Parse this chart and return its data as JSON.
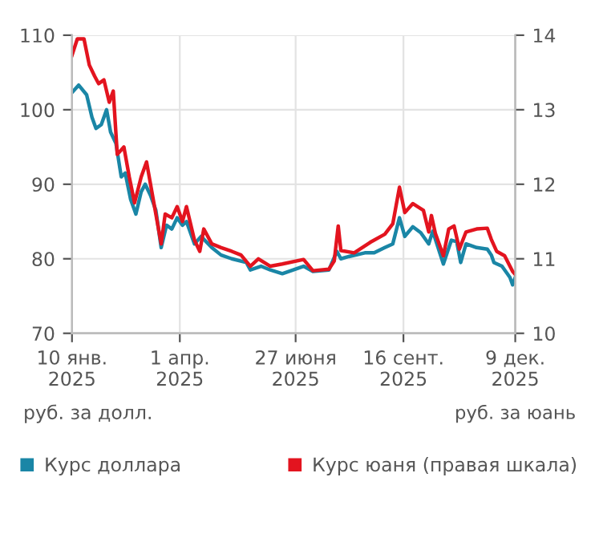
{
  "chart_data": {
    "type": "line",
    "ylabel": "руб. за долл.",
    "y2label": "руб. за юань",
    "xlim": [
      "2025-01-10",
      "2025-12-09"
    ],
    "xticks": [
      {
        "value": "2025-01-10",
        "label": "10 янв.\n2025"
      },
      {
        "value": "2025-04-01",
        "label": "1 апр.\n2025"
      },
      {
        "value": "2025-06-27",
        "label": "27 июня\n2025"
      },
      {
        "value": "2025-09-16",
        "label": "16 сент.\n2025"
      },
      {
        "value": "2025-12-09",
        "label": "9 дек.\n2025"
      }
    ],
    "ylim": [
      70,
      110
    ],
    "yticks": [
      70,
      80,
      90,
      100,
      110
    ],
    "y2lim": [
      10,
      14
    ],
    "y2ticks": [
      10,
      11,
      12,
      13,
      14
    ],
    "grid": true,
    "legend": "bottom",
    "marker": "none",
    "line_style": "solid",
    "series": [
      {
        "name": "Курс доллара",
        "color": "#1a86a6",
        "x": [
          "2025-01-10",
          "2025-01-15",
          "2025-01-21",
          "2025-01-25",
          "2025-01-28",
          "2025-02-01",
          "2025-02-05",
          "2025-02-08",
          "2025-02-12",
          "2025-02-16",
          "2025-02-19",
          "2025-02-23",
          "2025-02-27",
          "2025-03-03",
          "2025-03-06",
          "2025-03-10",
          "2025-03-14",
          "2025-03-18",
          "2025-03-22",
          "2025-03-26",
          "2025-03-30",
          "2025-04-03",
          "2025-04-06",
          "2025-04-12",
          "2025-04-17",
          "2025-04-25",
          "2025-05-02",
          "2025-05-10",
          "2025-05-21",
          "2025-05-24",
          "2025-06-01",
          "2025-06-08",
          "2025-06-17",
          "2025-07-03",
          "2025-07-10",
          "2025-07-22",
          "2025-07-28",
          "2025-07-31",
          "2025-08-06",
          "2025-08-18",
          "2025-08-25",
          "2025-09-02",
          "2025-09-08",
          "2025-09-13",
          "2025-09-17",
          "2025-09-23",
          "2025-09-29",
          "2025-10-05",
          "2025-10-08",
          "2025-10-16",
          "2025-10-22",
          "2025-10-26",
          "2025-10-29",
          "2025-11-02",
          "2025-11-10",
          "2025-11-18",
          "2025-11-21",
          "2025-11-23",
          "2025-11-29",
          "2025-12-05",
          "2025-12-07",
          "2025-12-09"
        ],
        "values": [
          102.3,
          103.3,
          102,
          99,
          97.5,
          98,
          100,
          97,
          95.5,
          91,
          91.5,
          88,
          86,
          89,
          90,
          88.5,
          86.5,
          81.5,
          84.5,
          84,
          85.5,
          84.5,
          85,
          82,
          83,
          81.5,
          80.5,
          80,
          79.5,
          78.5,
          79,
          78.5,
          78,
          79,
          78.3,
          78.5,
          81,
          80,
          80.3,
          80.8,
          80.8,
          81.5,
          82,
          85.5,
          83,
          84.3,
          83.5,
          82,
          83.7,
          79.3,
          82.5,
          82.3,
          79.5,
          82,
          81.5,
          81.3,
          80.5,
          79.5,
          79,
          77.5,
          76.5,
          77.5
        ]
      },
      {
        "name": "Курс юаня (правая шкала)",
        "color": "#e3141f",
        "axis": "y2",
        "x": [
          "2025-01-10",
          "2025-01-14",
          "2025-01-19",
          "2025-01-23",
          "2025-01-27",
          "2025-01-30",
          "2025-02-03",
          "2025-02-07",
          "2025-02-10",
          "2025-02-13",
          "2025-02-18",
          "2025-02-22",
          "2025-02-26",
          "2025-03-03",
          "2025-03-07",
          "2025-03-12",
          "2025-03-15",
          "2025-03-18",
          "2025-03-21",
          "2025-03-26",
          "2025-03-30",
          "2025-04-03",
          "2025-04-06",
          "2025-04-12",
          "2025-04-16",
          "2025-04-19",
          "2025-04-25",
          "2025-05-02",
          "2025-05-10",
          "2025-05-17",
          "2025-05-24",
          "2025-05-30",
          "2025-06-08",
          "2025-06-17",
          "2025-07-03",
          "2025-07-10",
          "2025-07-22",
          "2025-07-26",
          "2025-07-29",
          "2025-07-31",
          "2025-08-10",
          "2025-08-22",
          "2025-09-02",
          "2025-09-08",
          "2025-09-13",
          "2025-09-17",
          "2025-09-23",
          "2025-10-01",
          "2025-10-05",
          "2025-10-07",
          "2025-10-10",
          "2025-10-16",
          "2025-10-20",
          "2025-10-24",
          "2025-10-28",
          "2025-11-02",
          "2025-11-10",
          "2025-11-18",
          "2025-11-21",
          "2025-11-25",
          "2025-12-01",
          "2025-12-07",
          "2025-12-09"
        ],
        "values": [
          13.73,
          13.95,
          13.95,
          13.6,
          13.45,
          13.35,
          13.4,
          13.1,
          13.25,
          12.4,
          12.5,
          12.1,
          11.75,
          12.1,
          12.3,
          11.8,
          11.5,
          11.2,
          11.6,
          11.55,
          11.7,
          11.5,
          11.7,
          11.25,
          11.1,
          11.4,
          11.2,
          11.15,
          11.1,
          11.05,
          10.9,
          11.0,
          10.9,
          10.93,
          10.99,
          10.84,
          10.86,
          10.97,
          11.44,
          11.11,
          11.08,
          11.22,
          11.33,
          11.47,
          11.96,
          11.62,
          11.74,
          11.65,
          11.36,
          11.58,
          11.34,
          11.04,
          11.4,
          11.44,
          11.13,
          11.36,
          11.4,
          11.41,
          11.26,
          11.1,
          11.04,
          10.83,
          10.79
        ]
      }
    ]
  }
}
